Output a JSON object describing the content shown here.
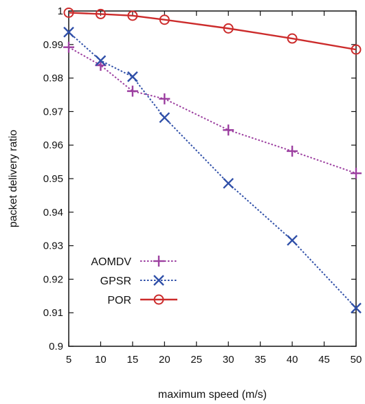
{
  "chart_data": {
    "type": "line",
    "title": "",
    "xlabel": "maximum speed (m/s)",
    "ylabel": "packet delivery ratio",
    "xlim": [
      5,
      50
    ],
    "ylim": [
      0.9,
      1.0
    ],
    "xticks": [
      5,
      10,
      15,
      20,
      25,
      30,
      35,
      40,
      45,
      50
    ],
    "yticks": [
      0.9,
      0.91,
      0.92,
      0.93,
      0.94,
      0.95,
      0.96,
      0.97,
      0.98,
      0.99,
      1.0
    ],
    "ytick_labels": [
      "0.9",
      "0.91",
      "0.92",
      "0.93",
      "0.94",
      "0.95",
      "0.96",
      "0.97",
      "0.98",
      "0.99",
      "1"
    ],
    "grid": false,
    "legend_position": "bottom-left",
    "series": [
      {
        "name": "AOMDV",
        "color": "#9c3fa0",
        "marker": "plus",
        "line_style": "dotted",
        "x": [
          5,
          10,
          15,
          20,
          30,
          40,
          50
        ],
        "y": [
          0.9892,
          0.9838,
          0.9761,
          0.9738,
          0.9645,
          0.9582,
          0.9516
        ]
      },
      {
        "name": "GPSR",
        "color": "#2f4fa8",
        "marker": "x",
        "line_style": "dotted",
        "x": [
          5,
          10,
          15,
          20,
          30,
          40,
          50
        ],
        "y": [
          0.9937,
          0.9852,
          0.9804,
          0.9682,
          0.9486,
          0.9316,
          0.9114
        ]
      },
      {
        "name": "POR",
        "color": "#cc2b2b",
        "marker": "circle",
        "line_style": "solid",
        "x": [
          5,
          10,
          15,
          20,
          30,
          40,
          50
        ],
        "y": [
          0.9995,
          0.9991,
          0.9986,
          0.9974,
          0.9948,
          0.9918,
          0.9885
        ]
      }
    ]
  }
}
